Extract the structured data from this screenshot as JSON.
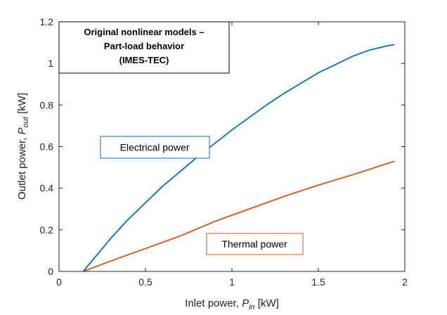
{
  "chart_data": {
    "type": "line",
    "xlabel": {
      "main": "Inlet power, ",
      "symbol": "P",
      "subscript": "in",
      "unit": " [kW]"
    },
    "ylabel": {
      "main": "Outlet power, ",
      "symbol": "P",
      "subscript": "out",
      "unit": " [kW]"
    },
    "xlim": [
      0,
      2
    ],
    "ylim": [
      0,
      1.2
    ],
    "xticks": [
      0,
      0.5,
      1,
      1.5,
      2
    ],
    "xtick_labels": [
      "0",
      "0.5",
      "1",
      "1.5",
      "2"
    ],
    "yticks": [
      0,
      0.2,
      0.4,
      0.6,
      0.8,
      1,
      1.2
    ],
    "ytick_labels": [
      "0",
      "0.2",
      "0.4",
      "0.6",
      "0.8",
      "1",
      "1.2"
    ],
    "grid": false,
    "series": [
      {
        "color": "#0072BD",
        "x": [
          0.14,
          0.2,
          0.3,
          0.4,
          0.5,
          0.6,
          0.7,
          0.8,
          0.9,
          1.0,
          1.1,
          1.2,
          1.3,
          1.4,
          1.5,
          1.6,
          1.7,
          1.8,
          1.9,
          1.94
        ],
        "y": [
          0.0,
          0.06,
          0.16,
          0.25,
          0.33,
          0.41,
          0.48,
          0.55,
          0.615,
          0.68,
          0.74,
          0.8,
          0.855,
          0.905,
          0.955,
          0.995,
          1.035,
          1.065,
          1.085,
          1.09
        ]
      },
      {
        "color": "#D95319",
        "x": [
          0.14,
          0.3,
          0.5,
          0.7,
          0.9,
          1.1,
          1.3,
          1.5,
          1.7,
          1.94
        ],
        "y": [
          0.0,
          0.05,
          0.11,
          0.17,
          0.24,
          0.3,
          0.36,
          0.415,
          0.465,
          0.53
        ]
      }
    ],
    "annotations": {
      "title_box": {
        "lines": [
          "Original nonlinear models –",
          "Part-load behavior",
          "(IMES-TEC)"
        ]
      },
      "electrical_label": {
        "text": "Electrical power",
        "color": "#0072BD"
      },
      "thermal_label": {
        "text": "Thermal power",
        "color": "#D95319"
      }
    }
  }
}
